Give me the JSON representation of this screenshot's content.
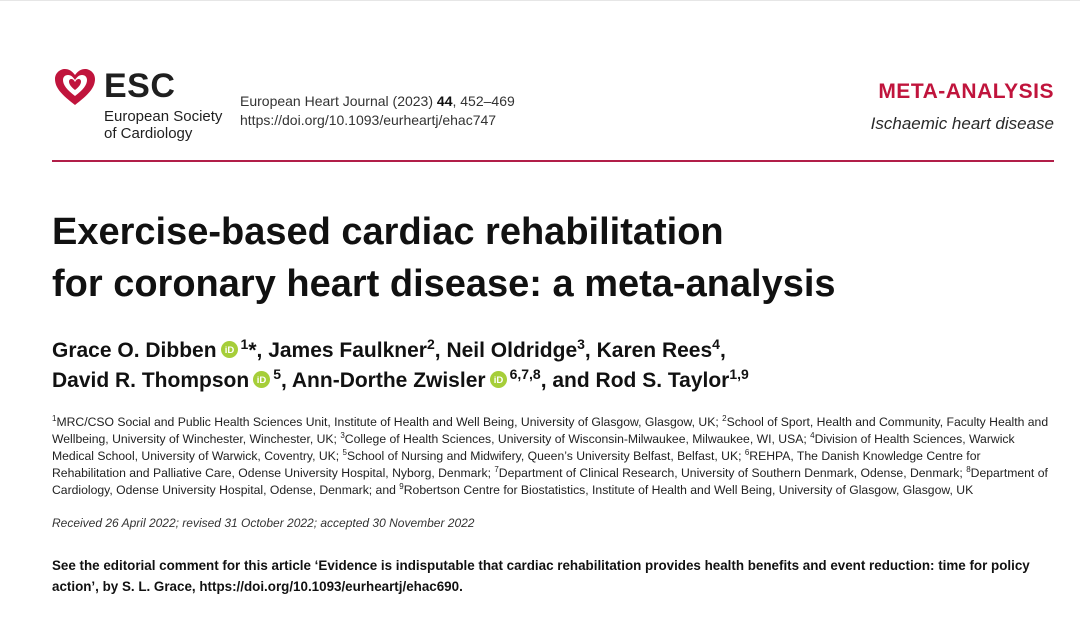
{
  "header": {
    "logo_text": "ESC",
    "logo_sub_line1": "European Society",
    "logo_sub_line2": "of Cardiology",
    "journal_prefix": "European Heart Journal (2023) ",
    "volume": "44",
    "pages": ", 452–469",
    "doi": "https://doi.org/10.1093/eurheartj/ehac747",
    "article_type": "META-ANALYSIS",
    "subject": "Ischaemic heart disease",
    "accent_color": "#c0143c"
  },
  "title": {
    "line1": "Exercise-based cardiac rehabilitation",
    "line2": "for coronary heart disease: a meta-analysis"
  },
  "authors": [
    {
      "name": "Grace O. Dibben",
      "orcid": true,
      "sup": "1",
      "mark": "*",
      "sep": ", "
    },
    {
      "name": "James Faulkner",
      "orcid": false,
      "sup": "2",
      "mark": "",
      "sep": ", "
    },
    {
      "name": "Neil Oldridge",
      "orcid": false,
      "sup": "3",
      "mark": "",
      "sep": ", "
    },
    {
      "name": "Karen Rees",
      "orcid": false,
      "sup": "4",
      "mark": "",
      "sep": ","
    },
    {
      "name": "David R. Thompson",
      "orcid": true,
      "sup": "5",
      "mark": "",
      "sep": ", "
    },
    {
      "name": "Ann-Dorthe Zwisler",
      "orcid": true,
      "sup": "6,7,8",
      "mark": "",
      "sep": ", and "
    },
    {
      "name": "Rod S. Taylor",
      "orcid": false,
      "sup": "1,9",
      "mark": "",
      "sep": ""
    }
  ],
  "affiliations": [
    {
      "num": "1",
      "text": "MRC/CSO Social and Public Health Sciences Unit, Institute of Health and Well Being, University of Glasgow, Glasgow, UK; "
    },
    {
      "num": "2",
      "text": "School of Sport, Health and Community, Faculty Health and Wellbeing, University of Winchester, Winchester, UK; "
    },
    {
      "num": "3",
      "text": "College of Health Sciences, University of Wisconsin-Milwaukee, Milwaukee, WI, USA; "
    },
    {
      "num": "4",
      "text": "Division of Health Sciences, Warwick Medical School, University of Warwick, Coventry, UK; "
    },
    {
      "num": "5",
      "text": "School of Nursing and Midwifery, Queen’s University Belfast, Belfast, UK; "
    },
    {
      "num": "6",
      "text": "REHPA, The Danish Knowledge Centre for Rehabilitation and Palliative Care, Odense University Hospital, Nyborg, Denmark; "
    },
    {
      "num": "7",
      "text": "Department of Clinical Research, University of Southern Denmark, Odense, Denmark; "
    },
    {
      "num": "8",
      "text": "Department of Cardiology, Odense University Hospital, Odense, Denmark; and "
    },
    {
      "num": "9",
      "text": "Robertson Centre for Biostatistics, Institute of Health and Well Being, University of Glasgow, Glasgow, UK"
    }
  ],
  "received": "Received 26 April 2022; revised 31 October 2022; accepted 30 November 2022",
  "editorial": "See the editorial comment for this article ‘Evidence is indisputable that cardiac rehabilitation provides health benefits and event reduction: time for policy action’, by S. L. Grace, https://doi.org/10.1093/eurheartj/ehac690."
}
